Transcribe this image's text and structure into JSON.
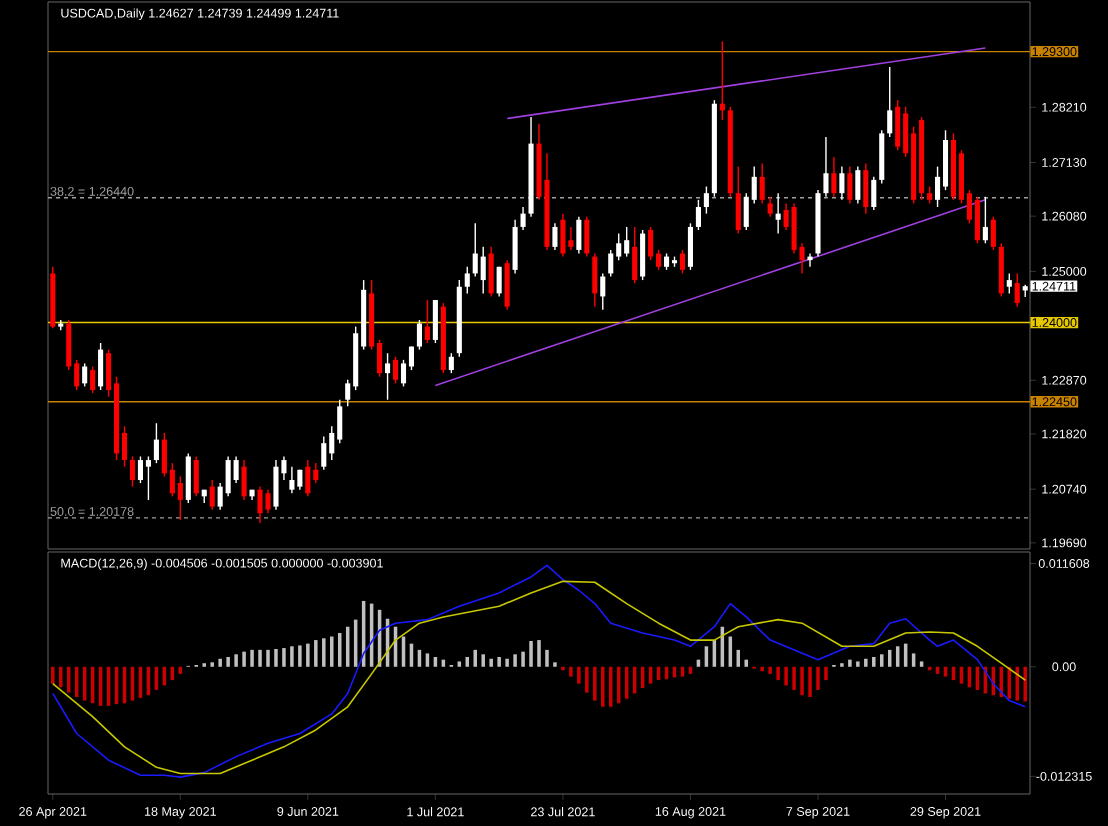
{
  "chart_data": [
    {
      "type": "candlestick",
      "title": "USDCAD,Daily 1.24627 1.24739 1.24499 1.24711",
      "categories": [
        null,
        null,
        null,
        null,
        null,
        null,
        null,
        null,
        null,
        null,
        null,
        null,
        null,
        null,
        null,
        null,
        null,
        null,
        null,
        null,
        null,
        null,
        null,
        null,
        null,
        null,
        null,
        null,
        null,
        null,
        null,
        null,
        null,
        null,
        null,
        null,
        null,
        null,
        null,
        null,
        null,
        null,
        null,
        null,
        null,
        null,
        null,
        null,
        null,
        null,
        null,
        null,
        null,
        null,
        null,
        null,
        null,
        null,
        null,
        null,
        null,
        null,
        null,
        null,
        null,
        null,
        null,
        null,
        null,
        null,
        null,
        null,
        null,
        null,
        null,
        null,
        null,
        null,
        null,
        null,
        null,
        null,
        null,
        null,
        null,
        null,
        null,
        null,
        null,
        null,
        null,
        null,
        null,
        null,
        null,
        null,
        null,
        null,
        null,
        null,
        null,
        null,
        null,
        null,
        null,
        null,
        null,
        null,
        null,
        null,
        null,
        null,
        null,
        null,
        null,
        null,
        null,
        null,
        null,
        null,
        null,
        null,
        null
      ],
      "ohlc": [
        [
          1.2496,
          1.2509,
          1.2389,
          1.2392
        ],
        [
          1.2392,
          1.2405,
          1.2385,
          1.2398
        ],
        [
          1.2398,
          1.2405,
          1.2307,
          1.2314
        ],
        [
          1.232,
          1.2327,
          1.2268,
          1.2275
        ],
        [
          1.2281,
          1.232,
          1.2275,
          1.2314
        ],
        [
          1.2307,
          1.2314,
          1.2262,
          1.2268
        ],
        [
          1.2275,
          1.236,
          1.2268,
          1.2347
        ],
        [
          1.234,
          1.2347,
          1.2255,
          1.2268
        ],
        [
          1.2281,
          1.2294,
          1.2131,
          1.2144
        ],
        [
          1.2184,
          1.2197,
          1.2118,
          1.2131
        ],
        [
          1.2131,
          1.2138,
          1.2079,
          1.2092
        ],
        [
          1.2092,
          1.2138,
          1.2086,
          1.2131
        ],
        [
          1.2118,
          1.2138,
          1.2053,
          1.2131
        ],
        [
          1.2131,
          1.2203,
          1.2125,
          1.2171
        ],
        [
          1.2171,
          1.2184,
          1.2099,
          1.2105
        ],
        [
          1.2112,
          1.2125,
          1.206,
          1.2066
        ],
        [
          1.2086,
          1.2099,
          1.2014,
          1.2053
        ],
        [
          1.2053,
          1.2144,
          1.2047,
          1.2138
        ],
        [
          1.2131,
          1.2138,
          1.206,
          1.2066
        ],
        [
          1.206,
          1.2073,
          1.2047,
          1.2073
        ],
        [
          1.2079,
          1.2092,
          1.2034,
          1.204
        ],
        [
          1.204,
          1.2086,
          1.2034,
          1.2079
        ],
        [
          1.2066,
          1.2138,
          1.206,
          1.2131
        ],
        [
          1.2092,
          1.2138,
          1.2086,
          1.2131
        ],
        [
          1.2118,
          1.2131,
          1.2053,
          1.206
        ],
        [
          1.206,
          1.2073,
          1.2053,
          1.2073
        ],
        [
          1.2073,
          1.2079,
          1.2008,
          1.2027
        ],
        [
          1.2066,
          1.2073,
          1.2027,
          1.2034
        ],
        [
          1.204,
          1.2131,
          1.2034,
          1.2118
        ],
        [
          1.2105,
          1.2138,
          1.2092,
          1.2131
        ],
        [
          1.2073,
          1.2118,
          1.2066,
          1.2092
        ],
        [
          1.2079,
          1.2112,
          1.2073,
          1.2112
        ],
        [
          1.2118,
          1.2131,
          1.206,
          1.2066
        ],
        [
          1.2112,
          1.2125,
          1.2086,
          1.2092
        ],
        [
          1.2118,
          1.2177,
          1.2112,
          1.2164
        ],
        [
          1.2144,
          1.2197,
          1.2131,
          1.2184
        ],
        [
          1.2171,
          1.2249,
          1.2164,
          1.2236
        ],
        [
          1.2249,
          1.2288,
          1.2236,
          1.2281
        ],
        [
          1.2275,
          1.2392,
          1.2268,
          1.2379
        ],
        [
          1.2353,
          1.2483,
          1.2347,
          1.2464
        ],
        [
          1.2457,
          1.2483,
          1.2347,
          1.2353
        ],
        [
          1.236,
          1.2366,
          1.2294,
          1.2301
        ],
        [
          1.2301,
          1.234,
          1.2249,
          1.232
        ],
        [
          1.2327,
          1.2333,
          1.2281,
          1.2288
        ],
        [
          1.2281,
          1.2327,
          1.2275,
          1.232
        ],
        [
          1.2314,
          1.2353,
          1.2307,
          1.2353
        ],
        [
          1.2353,
          1.2405,
          1.2347,
          1.2398
        ],
        [
          1.2392,
          1.2444,
          1.236,
          1.2366
        ],
        [
          1.2366,
          1.2444,
          1.236,
          1.2444
        ],
        [
          1.2431,
          1.2438,
          1.2301,
          1.2307
        ],
        [
          1.2307,
          1.234,
          1.2301,
          1.2333
        ],
        [
          1.234,
          1.2483,
          1.2333,
          1.247
        ],
        [
          1.247,
          1.2509,
          1.2457,
          1.2496
        ],
        [
          1.2496,
          1.2594,
          1.249,
          1.2535
        ],
        [
          1.2483,
          1.2548,
          1.2457,
          1.2529
        ],
        [
          1.2535,
          1.2548,
          1.2451,
          1.2457
        ],
        [
          1.2457,
          1.2509,
          1.2451,
          1.2509
        ],
        [
          1.2516,
          1.2522,
          1.2425,
          1.2431
        ],
        [
          1.2503,
          1.2601,
          1.2496,
          1.2587
        ],
        [
          1.2587,
          1.2626,
          1.2581,
          1.2613
        ],
        [
          1.2613,
          1.2802,
          1.2607,
          1.275
        ],
        [
          1.275,
          1.2789,
          1.264,
          1.2646
        ],
        [
          1.2679,
          1.2731,
          1.2542,
          1.2548
        ],
        [
          1.2548,
          1.2594,
          1.2542,
          1.2587
        ],
        [
          1.2601,
          1.2613,
          1.2529,
          1.2535
        ],
        [
          1.2561,
          1.2587,
          1.2542,
          1.2548
        ],
        [
          1.2542,
          1.2607,
          1.2535,
          1.2601
        ],
        [
          1.2601,
          1.2607,
          1.2529,
          1.2535
        ],
        [
          1.2529,
          1.2535,
          1.2431,
          1.2457
        ],
        [
          1.2451,
          1.2496,
          1.2425,
          1.249
        ],
        [
          1.2496,
          1.2542,
          1.249,
          1.2535
        ],
        [
          1.2529,
          1.2574,
          1.2522,
          1.2555
        ],
        [
          1.2535,
          1.2587,
          1.2529,
          1.2561
        ],
        [
          1.2548,
          1.2587,
          1.2477,
          1.2483
        ],
        [
          1.249,
          1.2581,
          1.2483,
          1.2574
        ],
        [
          1.2581,
          1.2587,
          1.2522,
          1.2529
        ],
        [
          1.2535,
          1.2542,
          1.2503,
          1.2509
        ],
        [
          1.2509,
          1.2535,
          1.2503,
          1.2529
        ],
        [
          1.2516,
          1.2529,
          1.2509,
          1.2522
        ],
        [
          1.2535,
          1.2542,
          1.2496,
          1.2503
        ],
        [
          1.2509,
          1.2594,
          1.2503,
          1.2587
        ],
        [
          1.2587,
          1.264,
          1.2581,
          1.2626
        ],
        [
          1.2626,
          1.2666,
          1.2613,
          1.2653
        ],
        [
          1.2653,
          1.2835,
          1.2646,
          1.2828
        ],
        [
          1.2828,
          1.295,
          1.2796,
          1.2815
        ],
        [
          1.2815,
          1.2822,
          1.2646,
          1.2653
        ],
        [
          1.2653,
          1.2705,
          1.2574,
          1.2581
        ],
        [
          1.2587,
          1.2653,
          1.2581,
          1.2646
        ],
        [
          1.264,
          1.2705,
          1.2633,
          1.2685
        ],
        [
          1.2685,
          1.2711,
          1.2633,
          1.264
        ],
        [
          1.2633,
          1.2646,
          1.2607,
          1.2613
        ],
        [
          1.2601,
          1.2653,
          1.2574,
          1.2613
        ],
        [
          1.262,
          1.2633,
          1.2581,
          1.2587
        ],
        [
          1.2626,
          1.2633,
          1.2535,
          1.2542
        ],
        [
          1.2548,
          1.2555,
          1.2496,
          1.2522
        ],
        [
          1.2522,
          1.2535,
          1.2509,
          1.2529
        ],
        [
          1.2535,
          1.2659,
          1.2529,
          1.2653
        ],
        [
          1.2653,
          1.2763,
          1.2646,
          1.2692
        ],
        [
          1.2692,
          1.2724,
          1.2646,
          1.2653
        ],
        [
          1.2653,
          1.2705,
          1.264,
          1.2692
        ],
        [
          1.2692,
          1.2705,
          1.2633,
          1.264
        ],
        [
          1.264,
          1.2705,
          1.2633,
          1.2698
        ],
        [
          1.2698,
          1.2711,
          1.2613,
          1.2626
        ],
        [
          1.2626,
          1.2685,
          1.262,
          1.2679
        ],
        [
          1.2679,
          1.2776,
          1.2672,
          1.277
        ],
        [
          1.277,
          1.29,
          1.2763,
          1.2815
        ],
        [
          1.2822,
          1.2835,
          1.2737,
          1.2744
        ],
        [
          1.2809,
          1.2822,
          1.2724,
          1.2731
        ],
        [
          1.277,
          1.2783,
          1.2633,
          1.264
        ],
        [
          1.2796,
          1.2802,
          1.264,
          1.2653
        ],
        [
          1.2653,
          1.2666,
          1.2633,
          1.264
        ],
        [
          1.264,
          1.2705,
          1.2626,
          1.2685
        ],
        [
          1.2666,
          1.2776,
          1.2659,
          1.2757
        ],
        [
          1.2757,
          1.277,
          1.264,
          1.2646
        ],
        [
          1.2731,
          1.2737,
          1.2633,
          1.264
        ],
        [
          1.2653,
          1.2659,
          1.2594,
          1.2601
        ],
        [
          1.264,
          1.2646,
          1.2555,
          1.2561
        ],
        [
          1.2561,
          1.2646,
          1.2555,
          1.2587
        ],
        [
          1.2601,
          1.2607,
          1.2542,
          1.2548
        ],
        [
          1.2548,
          1.2555,
          1.2451,
          1.2457
        ],
        [
          1.247,
          1.2496,
          1.2457,
          1.2483
        ],
        [
          1.2477,
          1.2496,
          1.2431,
          1.2438
        ],
        [
          1.24627,
          1.24739,
          1.24499,
          1.24711
        ]
      ],
      "colors": [
        "#ff0000",
        "#ffffff",
        "#ff0000",
        "#ff0000",
        "#ffffff",
        "#ff0000",
        "#ffffff",
        "#ff0000",
        "#ff0000",
        "#ff0000",
        "#ff0000",
        "#ffffff",
        "#ffffff",
        "#ffffff",
        "#ff0000",
        "#ff0000",
        "#ff0000",
        "#ffffff",
        "#ff0000",
        "#ffffff",
        "#ff0000",
        "#ffffff",
        "#ffffff",
        "#ffffff",
        "#ff0000",
        "#ffffff",
        "#ff0000",
        "#ff0000",
        "#ffffff",
        "#ffffff",
        "#ffffff",
        "#ffffff",
        "#ff0000",
        "#ff0000",
        "#ffffff",
        "#ffffff",
        "#ffffff",
        "#ffffff",
        "#ffffff",
        "#ffffff",
        "#ff0000",
        "#ff0000",
        "#ffffff",
        "#ff0000",
        "#ffffff",
        "#ffffff",
        "#ffffff",
        "#ff0000",
        "#ffffff",
        "#ff0000",
        "#ffffff",
        "#ffffff",
        "#ffffff",
        "#ffffff",
        "#ffffff",
        "#ff0000",
        "#ffffff",
        "#ff0000",
        "#ffffff",
        "#ffffff",
        "#ffffff",
        "#ff0000",
        "#ff0000",
        "#ffffff",
        "#ff0000",
        "#ff0000",
        "#ffffff",
        "#ff0000",
        "#ff0000",
        "#ffffff",
        "#ffffff",
        "#ffffff",
        "#ffffff",
        "#ff0000",
        "#ffffff",
        "#ff0000",
        "#ff0000",
        "#ffffff",
        "#ffffff",
        "#ff0000",
        "#ffffff",
        "#ffffff",
        "#ffffff",
        "#ffffff",
        "#ff0000",
        "#ff0000",
        "#ff0000",
        "#ffffff",
        "#ffffff",
        "#ff0000",
        "#ff0000",
        "#ffffff",
        "#ff0000",
        "#ff0000",
        "#ff0000",
        "#ffffff",
        "#ffffff",
        "#ffffff",
        "#ff0000",
        "#ffffff",
        "#ff0000",
        "#ffffff",
        "#ff0000",
        "#ffffff",
        "#ffffff",
        "#ffffff",
        "#ff0000",
        "#ff0000",
        "#ff0000",
        "#ff0000",
        "#ff0000",
        "#ffffff",
        "#ffffff",
        "#ff0000",
        "#ff0000",
        "#ff0000",
        "#ff0000",
        "#ffffff",
        "#ff0000",
        "#ff0000",
        "#ffffff",
        "#ff0000",
        "#ffffff"
      ],
      "series": [
        {
          "type": "line",
          "color": "#a040e0",
          "values": [
            null,
            null,
            null,
            null,
            null,
            null,
            null,
            null,
            null,
            null,
            null,
            null,
            null,
            null,
            null,
            null,
            null,
            null,
            null,
            null,
            null,
            null,
            null,
            null,
            null,
            null,
            null,
            null,
            null,
            null,
            null,
            null,
            null,
            null,
            null,
            null,
            null,
            null,
            null,
            null,
            null,
            null,
            null,
            null,
            null,
            null,
            null,
            null,
            null,
            null,
            null,
            null,
            null,
            null,
            null,
            null,
            null,
            1.2799,
            null,
            null,
            null,
            null,
            null,
            null,
            null,
            null,
            null,
            null,
            null,
            null,
            null,
            null,
            null,
            null,
            null,
            null,
            null,
            null,
            null,
            null,
            null,
            null,
            null,
            null,
            null,
            null,
            null,
            null,
            null,
            null,
            null,
            null,
            null,
            null,
            null,
            null,
            null,
            null,
            null,
            null,
            null,
            null,
            null,
            null,
            null,
            null,
            null,
            null,
            null,
            null,
            null,
            null,
            null,
            null,
            null,
            null,
            null,
            1.2937,
            null,
            null,
            null,
            null,
            null
          ]
        },
        {
          "type": "line",
          "color": "#a040e0",
          "values": [
            null,
            null,
            null,
            null,
            null,
            null,
            null,
            null,
            null,
            null,
            null,
            null,
            null,
            null,
            null,
            null,
            null,
            null,
            null,
            null,
            null,
            null,
            null,
            null,
            null,
            null,
            null,
            null,
            null,
            null,
            null,
            null,
            null,
            null,
            null,
            null,
            null,
            null,
            null,
            null,
            null,
            null,
            null,
            null,
            null,
            null,
            null,
            null,
            1.2277,
            null,
            null,
            null,
            null,
            null,
            null,
            null,
            null,
            null,
            null,
            null,
            null,
            null,
            null,
            null,
            null,
            null,
            null,
            null,
            null,
            null,
            null,
            null,
            null,
            null,
            null,
            null,
            null,
            null,
            null,
            null,
            null,
            null,
            null,
            null,
            null,
            null,
            null,
            null,
            null,
            null,
            null,
            null,
            null,
            null,
            null,
            null,
            null,
            null,
            null,
            null,
            null,
            null,
            null,
            null,
            null,
            null,
            null,
            null,
            null,
            null,
            null,
            null,
            null,
            null,
            null,
            null,
            null,
            1.264,
            null,
            null,
            null,
            null,
            null
          ]
        }
      ],
      "ylim": [
        1.1957,
        1.3027
      ],
      "yticks": [
        {
          "value": 1.2821,
          "label": "1.28210"
        },
        {
          "value": 1.2713,
          "label": "1.27130"
        },
        {
          "value": 1.2608,
          "label": "1.26080"
        },
        {
          "value": 1.25,
          "label": "1.25000"
        },
        {
          "value": 1.2287,
          "label": "1.22870"
        },
        {
          "value": 1.2182,
          "label": "1.21820"
        },
        {
          "value": 1.2074,
          "label": "1.20740"
        },
        {
          "value": 1.1969,
          "label": "1.19690"
        }
      ],
      "tick_labels": "y",
      "ref_lines": [
        {
          "axis": "y",
          "value": 1.293,
          "label": "1.29300",
          "color": "#c88200",
          "line_style": "solid"
        },
        {
          "axis": "y",
          "value": 1.2644,
          "label": "38.2 = 1.26440",
          "color": "#a0a0a0",
          "line_style": "dashed"
        },
        {
          "axis": "y",
          "value": 1.24,
          "label": "1.24000",
          "color": "#e6c800",
          "line_style": "solid"
        },
        {
          "axis": "y",
          "value": 1.2245,
          "label": "1.22450",
          "color": "#c88200",
          "line_style": "solid"
        },
        {
          "axis": "y",
          "value": 1.20178,
          "label": "50.0 = 1.20178",
          "color": "#a0a0a0",
          "line_style": "dashed"
        }
      ],
      "annotations": [
        "1.24711"
      ]
    },
    {
      "type": "bar",
      "title": "MACD(12,26,9) -0.004506 -0.001505 0.000000 -0.003901",
      "categories": [
        "26 Apr 2021",
        null,
        null,
        null,
        null,
        null,
        null,
        null,
        null,
        null,
        null,
        null,
        null,
        null,
        null,
        null,
        "18 May 2021",
        null,
        null,
        null,
        null,
        null,
        null,
        null,
        null,
        null,
        null,
        null,
        null,
        null,
        null,
        null,
        "9 Jun 2021",
        null,
        null,
        null,
        null,
        null,
        null,
        null,
        null,
        null,
        null,
        null,
        null,
        null,
        null,
        null,
        "1 Jul 2021",
        null,
        null,
        null,
        null,
        null,
        null,
        null,
        null,
        null,
        null,
        null,
        null,
        null,
        null,
        null,
        "23 Jul 2021",
        null,
        null,
        null,
        null,
        null,
        null,
        null,
        null,
        null,
        null,
        null,
        null,
        null,
        null,
        null,
        "16 Aug 2021",
        null,
        null,
        null,
        null,
        null,
        null,
        null,
        null,
        null,
        null,
        null,
        null,
        null,
        null,
        null,
        "7 Sep 2021",
        null,
        null,
        null,
        null,
        null,
        null,
        null,
        null,
        null,
        null,
        null,
        null,
        null,
        null,
        null,
        "29 Sep 2021",
        null,
        null,
        null,
        null,
        null,
        null,
        null,
        null,
        null,
        null
      ],
      "series": [
        {
          "type": "bar",
          "values": [
            -0.0019,
            -0.0023,
            -0.0029,
            -0.0034,
            -0.0038,
            -0.0041,
            -0.0044,
            -0.0044,
            -0.0042,
            -0.0041,
            -0.0038,
            -0.0035,
            -0.0032,
            -0.0026,
            -0.0021,
            -0.0015,
            -0.0008,
            0.0001,
            0.0002,
            0.0004,
            0.0005,
            0.0009,
            0.0011,
            0.0014,
            0.0017,
            0.0019,
            0.0019,
            0.0019,
            0.002,
            0.0021,
            0.0023,
            0.0024,
            0.0026,
            0.003,
            0.0032,
            0.0034,
            0.0038,
            0.0045,
            0.0053,
            0.0074,
            0.0071,
            0.0064,
            0.0054,
            0.0045,
            0.0034,
            0.0026,
            0.0019,
            0.0015,
            0.0011,
            0.0008,
            0.0002,
            0.0006,
            0.0011,
            0.0019,
            0.0014,
            0.0009,
            0.0011,
            0.0009,
            0.0014,
            0.0017,
            0.0029,
            0.003,
            0.0019,
            0.0005,
            -0.0004,
            -0.0011,
            -0.0019,
            -0.0029,
            -0.0038,
            -0.0045,
            -0.0045,
            -0.0041,
            -0.0036,
            -0.003,
            -0.0024,
            -0.0019,
            -0.0015,
            -0.0014,
            -0.0012,
            -0.0011,
            -0.0008,
            0.0008,
            0.0023,
            0.003,
            0.0045,
            0.0034,
            0.0019,
            0.0008,
            -0.0002,
            -0.0005,
            -0.0008,
            -0.0015,
            -0.0021,
            -0.0026,
            -0.0032,
            -0.0034,
            -0.0026,
            -0.0015,
            0.0002,
            0.0004,
            0.0008,
            0.0006,
            0.0009,
            0.0011,
            0.0014,
            0.0019,
            0.0023,
            0.0026,
            0.0015,
            0.0006,
            -0.0004,
            -0.0008,
            -0.0011,
            -0.0015,
            -0.0019,
            -0.0023,
            -0.0026,
            -0.003,
            -0.0032,
            -0.0034,
            -0.0036,
            -0.0038,
            -0.0039
          ],
          "colors": [
            "#cc0000",
            "#cc0000",
            "#cc0000",
            "#cc0000",
            "#cc0000",
            "#cc0000",
            "#cc0000",
            "#cc0000",
            "#cc0000",
            "#cc0000",
            "#cc0000",
            "#cc0000",
            "#cc0000",
            "#cc0000",
            "#cc0000",
            "#cc0000",
            "#cc0000",
            "#c0c0c0",
            "#c0c0c0",
            "#c0c0c0",
            "#c0c0c0",
            "#c0c0c0",
            "#c0c0c0",
            "#c0c0c0",
            "#c0c0c0",
            "#c0c0c0",
            "#c0c0c0",
            "#c0c0c0",
            "#c0c0c0",
            "#c0c0c0",
            "#c0c0c0",
            "#c0c0c0",
            "#c0c0c0",
            "#c0c0c0",
            "#c0c0c0",
            "#c0c0c0",
            "#c0c0c0",
            "#c0c0c0",
            "#c0c0c0",
            "#c0c0c0",
            "#c0c0c0",
            "#c0c0c0",
            "#c0c0c0",
            "#c0c0c0",
            "#c0c0c0",
            "#c0c0c0",
            "#c0c0c0",
            "#c0c0c0",
            "#c0c0c0",
            "#c0c0c0",
            "#c0c0c0",
            "#c0c0c0",
            "#c0c0c0",
            "#c0c0c0",
            "#c0c0c0",
            "#c0c0c0",
            "#c0c0c0",
            "#c0c0c0",
            "#c0c0c0",
            "#c0c0c0",
            "#c0c0c0",
            "#c0c0c0",
            "#c0c0c0",
            "#c0c0c0",
            "#cc0000",
            "#cc0000",
            "#cc0000",
            "#cc0000",
            "#cc0000",
            "#cc0000",
            "#cc0000",
            "#cc0000",
            "#cc0000",
            "#cc0000",
            "#cc0000",
            "#cc0000",
            "#cc0000",
            "#cc0000",
            "#cc0000",
            "#cc0000",
            "#cc0000",
            "#c0c0c0",
            "#c0c0c0",
            "#c0c0c0",
            "#c0c0c0",
            "#c0c0c0",
            "#c0c0c0",
            "#c0c0c0",
            "#cc0000",
            "#cc0000",
            "#cc0000",
            "#cc0000",
            "#cc0000",
            "#cc0000",
            "#cc0000",
            "#cc0000",
            "#cc0000",
            "#cc0000",
            "#c0c0c0",
            "#c0c0c0",
            "#c0c0c0",
            "#c0c0c0",
            "#c0c0c0",
            "#c0c0c0",
            "#c0c0c0",
            "#c0c0c0",
            "#c0c0c0",
            "#c0c0c0",
            "#c0c0c0",
            "#c0c0c0",
            "#cc0000",
            "#cc0000",
            "#cc0000",
            "#cc0000",
            "#cc0000",
            "#cc0000",
            "#cc0000",
            "#cc0000",
            "#cc0000",
            "#cc0000",
            "#cc0000",
            "#cc0000",
            "#cc0000"
          ]
        },
        {
          "type": "line",
          "color": "#1a1aff",
          "values": [
            -0.003,
            null,
            null,
            -0.0075,
            null,
            null,
            null,
            -0.0105,
            null,
            null,
            null,
            -0.0122,
            null,
            null,
            -0.0122,
            null,
            -0.0124,
            null,
            null,
            -0.0119,
            null,
            null,
            null,
            -0.0101,
            null,
            null,
            null,
            -0.0086,
            null,
            null,
            null,
            -0.0075,
            null,
            null,
            null,
            -0.0053,
            null,
            -0.003,
            null,
            0.0015,
            null,
            0.0041,
            null,
            0.0049,
            null,
            null,
            null,
            0.0053,
            null,
            null,
            null,
            0.0068,
            null,
            null,
            null,
            null,
            0.0083,
            null,
            null,
            null,
            0.0101,
            null,
            0.0114,
            null,
            0.0098,
            null,
            0.0086,
            null,
            0.0071,
            null,
            0.0049,
            null,
            null,
            null,
            0.0038,
            null,
            null,
            null,
            0.003,
            null,
            0.0023,
            null,
            null,
            0.0045,
            null,
            0.0071,
            null,
            0.0056,
            null,
            null,
            0.003,
            null,
            null,
            null,
            null,
            null,
            0.0008,
            null,
            null,
            null,
            0.0023,
            null,
            null,
            0.0026,
            null,
            0.0049,
            null,
            0.0054,
            null,
            null,
            0.003,
            0.0023,
            null,
            0.003,
            null,
            null,
            0.0008,
            null,
            -0.0019,
            null,
            -0.0038,
            null,
            -0.0045
          ]
        },
        {
          "type": "line",
          "color": "#c8c800",
          "values": [
            -0.0019,
            null,
            null,
            null,
            null,
            -0.0056,
            null,
            null,
            null,
            -0.009,
            null,
            null,
            null,
            -0.0113,
            null,
            null,
            -0.012,
            null,
            null,
            null,
            null,
            -0.012,
            null,
            null,
            null,
            -0.0105,
            null,
            null,
            null,
            -0.009,
            null,
            null,
            null,
            -0.0071,
            null,
            null,
            null,
            -0.0045,
            null,
            null,
            -0.0008,
            null,
            null,
            0.003,
            null,
            null,
            0.0049,
            null,
            null,
            0.0056,
            null,
            null,
            null,
            null,
            null,
            null,
            0.0068,
            null,
            null,
            null,
            0.0083,
            null,
            null,
            null,
            0.0096,
            null,
            null,
            null,
            0.0095,
            null,
            null,
            null,
            0.0071,
            null,
            null,
            null,
            0.0049,
            null,
            null,
            null,
            0.003,
            null,
            null,
            0.003,
            null,
            null,
            0.0045,
            null,
            null,
            null,
            null,
            0.0053,
            null,
            null,
            0.0049,
            null,
            null,
            null,
            null,
            0.0023,
            null,
            null,
            null,
            0.0023,
            null,
            null,
            null,
            0.0038,
            null,
            null,
            0.0039,
            null,
            null,
            0.0038,
            null,
            null,
            0.0023,
            null,
            null,
            0.0004,
            null,
            null,
            -0.0015
          ]
        }
      ],
      "ylim": [
        -0.0143,
        0.0129
      ],
      "yticks": [
        {
          "value": 0.011608,
          "label": "0.011608"
        },
        {
          "value": 0,
          "label": "0.00"
        },
        {
          "value": -0.012315,
          "label": "-0.012315"
        }
      ]
    }
  ]
}
